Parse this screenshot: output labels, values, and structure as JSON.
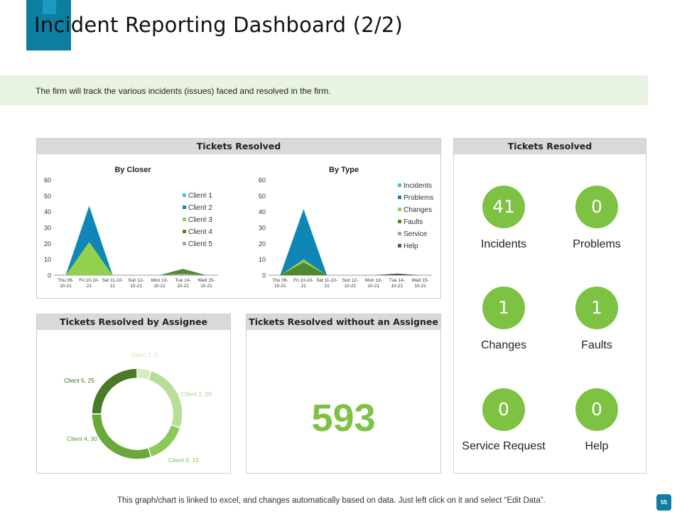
{
  "page_title": "Incident Reporting Dashboard (2/2)",
  "banner_text": "The firm will track the various  incidents (issues) faced and resolved  in the firm.",
  "panels": {
    "tickets_resolved_charts": "Tickets Resolved",
    "tickets_resolved_stats": "Tickets Resolved",
    "by_assignee": "Tickets Resolved by Assignee",
    "without_assignee": "Tickets Resolved without an Assignee"
  },
  "without_assignee_value": "593",
  "stats": [
    {
      "value": "41",
      "label": "Incidents"
    },
    {
      "value": "0",
      "label": "Problems"
    },
    {
      "value": "1",
      "label": "Changes"
    },
    {
      "value": "1",
      "label": "Faults"
    },
    {
      "value": "0",
      "label": "Service Request"
    },
    {
      "value": "0",
      "label": "Help"
    }
  ],
  "footer_text": "This graph/chart is linked to excel,  and changes automatically based on data. Just left click on it and select “Edit Data”.",
  "page_number": "55",
  "colors": {
    "accent": "#0e7ea0",
    "accent_light": "#1a9bc2",
    "green": "#7dc243",
    "banner": "#e9f3e1",
    "header_gray": "#d9d9d9"
  },
  "chart_data": [
    {
      "type": "area",
      "title": "By Closer",
      "categories": [
        [
          "Thu 09-",
          "10-21"
        ],
        [
          "Fri 10-10-",
          "21"
        ],
        [
          "Sat 11-10-",
          "21"
        ],
        [
          "Sun 12-",
          "10-21"
        ],
        [
          "Mon 13-",
          "10-21"
        ],
        [
          "Tue 14-",
          "10-21"
        ],
        [
          "Wed 15-",
          "10-21"
        ]
      ],
      "ylim": [
        0,
        60
      ],
      "yticks": [
        0,
        10,
        20,
        30,
        40,
        50,
        60
      ],
      "legend_position": "right",
      "series": [
        {
          "name": "Client 1",
          "color": "#4bc0dd",
          "values": [
            0,
            44,
            0,
            0,
            0,
            0,
            0
          ]
        },
        {
          "name": "Client 2",
          "color": "#0f86b5",
          "values": [
            0,
            43,
            0,
            0,
            0,
            0,
            0
          ]
        },
        {
          "name": "Client 3",
          "color": "#92d050",
          "values": [
            0,
            21,
            0,
            0,
            0,
            0,
            0
          ]
        },
        {
          "name": "Client 4",
          "color": "#4e8a2e",
          "values": [
            0,
            0,
            0,
            0,
            0,
            4,
            0
          ]
        },
        {
          "name": "Client 5",
          "color": "#a6a6a6",
          "values": [
            0,
            0,
            0,
            0,
            0,
            1,
            0
          ]
        }
      ]
    },
    {
      "type": "area",
      "title": "By Type",
      "categories": [
        [
          "Thu 09-",
          "10-21"
        ],
        [
          "Fri 10-10-",
          "21"
        ],
        [
          "Sat 11-10-",
          "21"
        ],
        [
          "Sun 12-",
          "10-21"
        ],
        [
          "Mon 13-",
          "10-21"
        ],
        [
          "Tue 14-",
          "10-21"
        ],
        [
          "Wed 15-",
          "10-21"
        ]
      ],
      "ylim": [
        0,
        60
      ],
      "yticks": [
        0,
        10,
        20,
        30,
        40,
        50,
        60
      ],
      "legend_position": "right",
      "series": [
        {
          "name": "Incidents",
          "color": "#4bc0dd",
          "values": [
            0,
            42,
            0,
            0,
            0,
            0,
            0
          ]
        },
        {
          "name": "Problems",
          "color": "#0f86b5",
          "values": [
            0,
            41,
            0,
            0,
            0,
            0,
            0
          ]
        },
        {
          "name": "Changes",
          "color": "#92d050",
          "values": [
            0,
            10,
            0,
            0,
            0,
            0,
            0
          ]
        },
        {
          "name": "Faults",
          "color": "#4e8a2e",
          "values": [
            0,
            8,
            0,
            0,
            0,
            0,
            0
          ]
        },
        {
          "name": "Service",
          "color": "#a6a6a6",
          "values": [
            0,
            0,
            0,
            0,
            0,
            1,
            0
          ]
        },
        {
          "name": "Help",
          "color": "#595959",
          "values": [
            0,
            0,
            0,
            0,
            0,
            1,
            0
          ]
        }
      ]
    },
    {
      "type": "pie",
      "donut": true,
      "title": "Tickets Resolved by Assignee",
      "slices": [
        {
          "label": "Client 1, 5",
          "value": 5,
          "color": "#d5ecc2"
        },
        {
          "label": "Client 2, 25",
          "value": 25,
          "color": "#b8de97"
        },
        {
          "label": "Client 3, 15",
          "value": 15,
          "color": "#8cc95a"
        },
        {
          "label": "Client 4, 30",
          "value": 30,
          "color": "#6aa83a"
        },
        {
          "label": "Client 5, 25",
          "value": 25,
          "color": "#4a7a27"
        }
      ]
    }
  ]
}
